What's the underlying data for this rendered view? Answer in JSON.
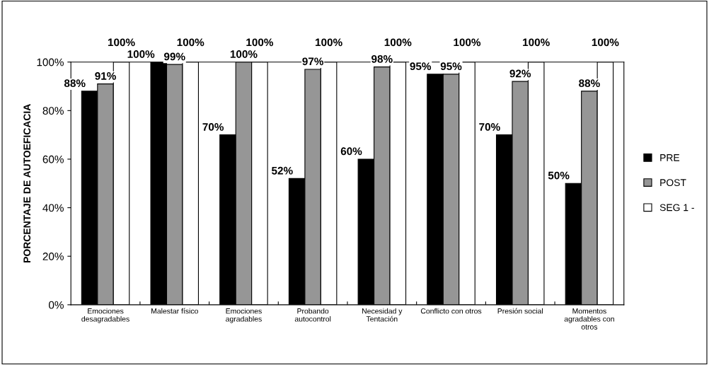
{
  "chart_data": {
    "type": "bar",
    "ylabel": "PORCENTAJE DE AUTOEFICACIA",
    "categories": [
      "Emociones\ndesagradables",
      "Malestar físico",
      "Emociones\nagradables",
      "Probando\nautocontrol",
      "Necesidad y\nTentación",
      "Conflicto con otros",
      "Presión social",
      "Momentos\nagradables con\notros"
    ],
    "series": [
      {
        "name": "PRE",
        "color": "#000000",
        "values": [
          88,
          100,
          70,
          52,
          60,
          95,
          70,
          50
        ],
        "value_labels": [
          "88%",
          "100%",
          "70%",
          "52%",
          "60%",
          "95%",
          "70%",
          "50%"
        ]
      },
      {
        "name": "POST",
        "color": "#969696",
        "values": [
          91,
          99,
          100,
          97,
          98,
          95,
          92,
          88
        ],
        "value_labels": [
          "91%",
          "99%",
          "100%",
          "97%",
          "98%",
          "95%",
          "92%",
          "88%"
        ]
      },
      {
        "name": "SEG 1 -",
        "color": "#ffffff",
        "values": [
          100,
          100,
          100,
          100,
          100,
          100,
          100,
          100
        ],
        "value_labels": [
          "100%",
          "100%",
          "100%",
          "100%",
          "100%",
          "100%",
          "100%",
          "100%"
        ]
      }
    ],
    "ylim": [
      0,
      100
    ],
    "yticks": [
      {
        "value": 0,
        "label": "0%"
      },
      {
        "value": 20,
        "label": "20%"
      },
      {
        "value": 40,
        "label": "40%"
      },
      {
        "value": 60,
        "label": "60%"
      },
      {
        "value": 80,
        "label": "80%"
      },
      {
        "value": 100,
        "label": "100%"
      }
    ],
    "grid": false,
    "legend": "right"
  }
}
